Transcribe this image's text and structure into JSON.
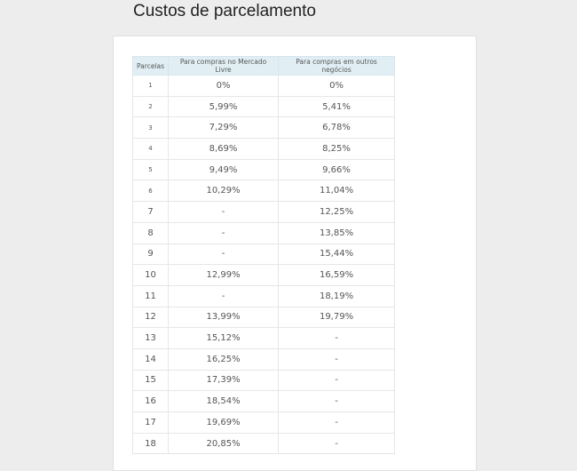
{
  "header": {
    "title": "Custos de parcelamento"
  },
  "table": {
    "headers": [
      "Parcelas",
      "Para compras no Mercado Livre",
      "Para compras em outros negócios"
    ],
    "rows": [
      [
        "1",
        "0%",
        "0%"
      ],
      [
        "2",
        "5,99%",
        "5,41%"
      ],
      [
        "3",
        "7,29%",
        "6,78%"
      ],
      [
        "4",
        "8,69%",
        "8,25%"
      ],
      [
        "5",
        "9,49%",
        "9,66%"
      ],
      [
        "6",
        "10,29%",
        "11,04%"
      ],
      [
        "7",
        "-",
        "12,25%"
      ],
      [
        "8",
        "-",
        "13,85%"
      ],
      [
        "9",
        "-",
        "15,44%"
      ],
      [
        "10",
        "12,99%",
        "16,59%"
      ],
      [
        "11",
        "-",
        "18,19%"
      ],
      [
        "12",
        "13,99%",
        "19,79%"
      ],
      [
        "13",
        "15,12%",
        "-"
      ],
      [
        "14",
        "16,25%",
        "-"
      ],
      [
        "15",
        "17,39%",
        "-"
      ],
      [
        "16",
        "18,54%",
        "-"
      ],
      [
        "17",
        "19,69%",
        "-"
      ],
      [
        "18",
        "20,85%",
        "-"
      ]
    ]
  }
}
